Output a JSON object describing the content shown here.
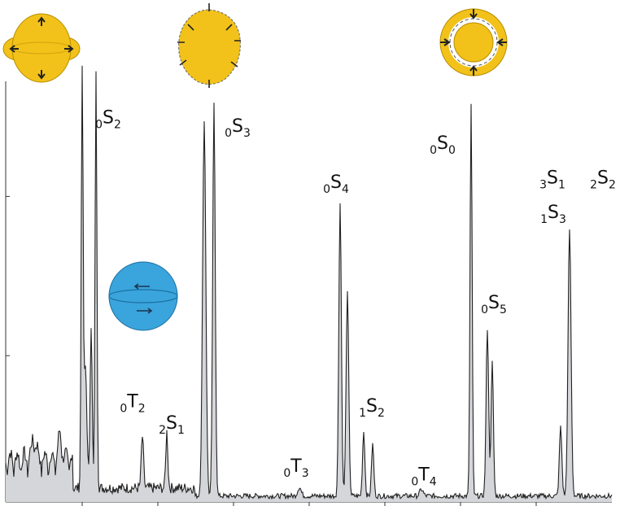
{
  "chart_data": {
    "type": "line",
    "title": "",
    "xlabel": "",
    "ylabel": "",
    "filled": true,
    "grid": false,
    "colors": {
      "trace": "#222222",
      "fill": "#d4d6da",
      "mode_icon_yellow": "#f2c21a",
      "mode_icon_yellow_edge": "#b88e00",
      "mode_icon_blue": "#3aa4dc",
      "mode_icon_blue_edge": "#1b6fa0",
      "arrow": "#222222"
    },
    "icons": [
      "spheroidal-0S2-mode-icon",
      "spheroidal-0S3-mode-icon",
      "radial-0S0-mode-icon",
      "toroidal-0T2-mode-icon"
    ],
    "peaks": [
      {
        "x": 101,
        "y": 0.97,
        "w": 1.6
      },
      {
        "x": 105,
        "y": 0.28,
        "w": 2.5
      },
      {
        "x": 112,
        "y": 0.38,
        "w": 1.8
      },
      {
        "x": 118,
        "y": 0.96,
        "w": 1.6
      },
      {
        "x": 175,
        "y": 0.12,
        "w": 2.0
      },
      {
        "x": 205,
        "y": 0.13,
        "w": 1.8
      },
      {
        "x": 251,
        "y": 0.87,
        "w": 2.8
      },
      {
        "x": 263,
        "y": 0.91,
        "w": 2.2
      },
      {
        "x": 368,
        "y": 0.02,
        "w": 3.0
      },
      {
        "x": 418,
        "y": 0.68,
        "w": 2.2
      },
      {
        "x": 427,
        "y": 0.47,
        "w": 2.3
      },
      {
        "x": 447,
        "y": 0.15,
        "w": 2.0
      },
      {
        "x": 458,
        "y": 0.12,
        "w": 2.0
      },
      {
        "x": 518,
        "y": 0.015,
        "w": 3.0
      },
      {
        "x": 579,
        "y": 0.91,
        "w": 1.8
      },
      {
        "x": 599,
        "y": 0.39,
        "w": 2.2
      },
      {
        "x": 605,
        "y": 0.31,
        "w": 2.0
      },
      {
        "x": 689,
        "y": 0.16,
        "w": 2.2
      },
      {
        "x": 700,
        "y": 0.62,
        "w": 2.6
      }
    ],
    "labels": [
      {
        "main": "S",
        "pre": "0",
        "post": "2",
        "x": 133,
        "y": 0.88,
        "name": "label-0S2"
      },
      {
        "main": "S",
        "pre": "0",
        "post": "3",
        "x": 292,
        "y": 0.86,
        "name": "label-0S3"
      },
      {
        "main": "S",
        "pre": "0",
        "post": "4",
        "x": 413,
        "y": 0.73,
        "name": "label-0S4"
      },
      {
        "main": "S",
        "pre": "0",
        "post": "0",
        "x": 544,
        "y": 0.82,
        "name": "label-0S0"
      },
      {
        "main": "S",
        "pre": "3",
        "post": "1",
        "x": 679,
        "y": 0.74,
        "name": "label-3S1"
      },
      {
        "main": "S",
        "pre": "2",
        "post": "2",
        "x": 741,
        "y": 0.74,
        "name": "label-2S2"
      },
      {
        "main": "S",
        "pre": "1",
        "post": "3",
        "x": 680,
        "y": 0.66,
        "name": "label-1S3"
      },
      {
        "main": "S",
        "pre": "0",
        "post": "5",
        "x": 607,
        "y": 0.45,
        "name": "label-0S5"
      },
      {
        "main": "T",
        "pre": "0",
        "post": "2",
        "x": 163,
        "y": 0.22,
        "name": "label-0T2"
      },
      {
        "main": "S",
        "pre": "2",
        "post": "1",
        "x": 211,
        "y": 0.17,
        "name": "label-2S1"
      },
      {
        "main": "S",
        "pre": "1",
        "post": "2",
        "x": 457,
        "y": 0.21,
        "name": "label-1S2"
      },
      {
        "main": "T",
        "pre": "0",
        "post": "3",
        "x": 364,
        "y": 0.07,
        "name": "label-0T3"
      },
      {
        "main": "T",
        "pre": "0",
        "post": "4",
        "x": 521,
        "y": 0.05,
        "name": "label-0T4"
      }
    ]
  }
}
